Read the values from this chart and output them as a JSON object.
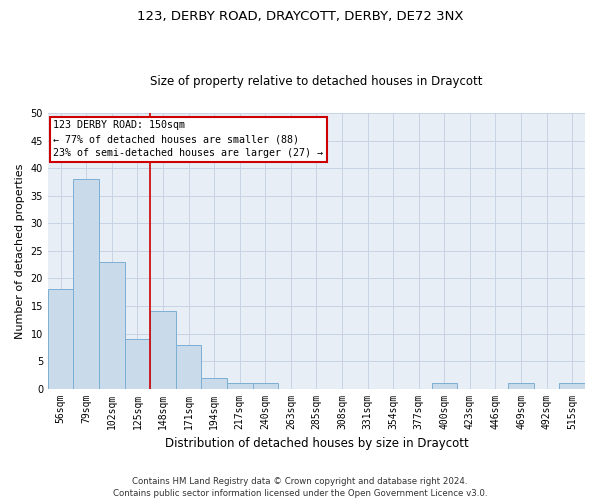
{
  "title1": "123, DERBY ROAD, DRAYCOTT, DERBY, DE72 3NX",
  "title2": "Size of property relative to detached houses in Draycott",
  "xlabel": "Distribution of detached houses by size in Draycott",
  "ylabel": "Number of detached properties",
  "bin_labels": [
    "56sqm",
    "79sqm",
    "102sqm",
    "125sqm",
    "148sqm",
    "171sqm",
    "194sqm",
    "217sqm",
    "240sqm",
    "263sqm",
    "285sqm",
    "308sqm",
    "331sqm",
    "354sqm",
    "377sqm",
    "400sqm",
    "423sqm",
    "446sqm",
    "469sqm",
    "492sqm",
    "515sqm"
  ],
  "bar_values": [
    18,
    38,
    23,
    9,
    14,
    8,
    2,
    1,
    1,
    0,
    0,
    0,
    0,
    0,
    0,
    1,
    0,
    0,
    1,
    0,
    1
  ],
  "bar_color": "#c9daea",
  "bar_edge_color": "#7bafd4",
  "vline_color": "#cc0000",
  "vline_x_index": 3.5,
  "annotation_line1": "123 DERBY ROAD: 150sqm",
  "annotation_line2": "← 77% of detached houses are smaller (88)",
  "annotation_line3": "23% of semi-detached houses are larger (27) →",
  "annotation_box_color": "#cc0000",
  "ylim": [
    0,
    50
  ],
  "yticks": [
    0,
    5,
    10,
    15,
    20,
    25,
    30,
    35,
    40,
    45,
    50
  ],
  "grid_color": "#c8d4e4",
  "bg_color": "#e8eef6",
  "title1_fontsize": 9.5,
  "title2_fontsize": 8.5,
  "xlabel_fontsize": 8.5,
  "ylabel_fontsize": 8,
  "tick_fontsize": 7,
  "footnote": "Contains HM Land Registry data © Crown copyright and database right 2024.\nContains public sector information licensed under the Open Government Licence v3.0."
}
